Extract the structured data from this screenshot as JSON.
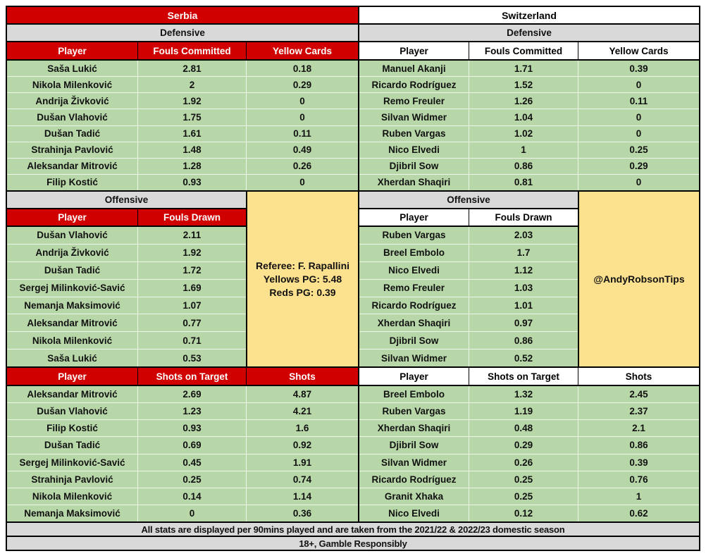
{
  "page": {
    "colors": {
      "serbia_accent_red": "#d00000",
      "row_green": "#b7d7a8",
      "note_yellow": "#fce18f",
      "label_gray": "#d9d9d9",
      "swiss_header_white": "#ffffff"
    }
  },
  "serbia": {
    "team": "Serbia",
    "defensive": {
      "label": "Defensive",
      "headers": [
        "Player",
        "Fouls Committed",
        "Yellow Cards"
      ],
      "rows": [
        {
          "player": "Saša Lukić",
          "fouls": "2.81",
          "yellows": "0.18"
        },
        {
          "player": "Nikola Milenković",
          "fouls": "2",
          "yellows": "0.29"
        },
        {
          "player": "Andrija Živković",
          "fouls": "1.92",
          "yellows": "0"
        },
        {
          "player": "Dušan Vlahović",
          "fouls": "1.75",
          "yellows": "0"
        },
        {
          "player": "Dušan Tadić",
          "fouls": "1.61",
          "yellows": "0.11"
        },
        {
          "player": "Strahinja Pavlović",
          "fouls": "1.48",
          "yellows": "0.49"
        },
        {
          "player": "Aleksandar Mitrović",
          "fouls": "1.28",
          "yellows": "0.26"
        },
        {
          "player": "Filip Kostić",
          "fouls": "0.93",
          "yellows": "0"
        }
      ]
    },
    "offensive": {
      "label": "Offensive",
      "headers": [
        "Player",
        "Fouls Drawn"
      ],
      "rows": [
        {
          "player": "Dušan Vlahović",
          "value": "2.11"
        },
        {
          "player": "Andrija Živković",
          "value": "1.92"
        },
        {
          "player": "Dušan Tadić",
          "value": "1.72"
        },
        {
          "player": "Sergej Milinković-Savić",
          "value": "1.69"
        },
        {
          "player": "Nemanja Maksimović",
          "value": "1.07"
        },
        {
          "player": "Aleksandar Mitrović",
          "value": "0.77"
        },
        {
          "player": "Nikola Milenković",
          "value": "0.71"
        },
        {
          "player": "Saša Lukić",
          "value": "0.53"
        }
      ]
    },
    "shots": {
      "headers": [
        "Player",
        "Shots on Target",
        "Shots"
      ],
      "rows": [
        {
          "player": "Aleksandar Mitrović",
          "sot": "2.69",
          "shots": "4.87"
        },
        {
          "player": "Dušan Vlahović",
          "sot": "1.23",
          "shots": "4.21"
        },
        {
          "player": "Filip Kostić",
          "sot": "0.93",
          "shots": "1.6"
        },
        {
          "player": "Dušan Tadić",
          "sot": "0.69",
          "shots": "0.92"
        },
        {
          "player": "Sergej Milinković-Savić",
          "sot": "0.45",
          "shots": "1.91"
        },
        {
          "player": "Strahinja Pavlović",
          "sot": "0.25",
          "shots": "0.74"
        },
        {
          "player": "Nikola Milenković",
          "sot": "0.14",
          "shots": "1.14"
        },
        {
          "player": "Nemanja Maksimović",
          "sot": "0",
          "shots": "0.36"
        }
      ]
    }
  },
  "switzerland": {
    "team": "Switzerland",
    "defensive": {
      "label": "Defensive",
      "headers": [
        "Player",
        "Fouls Committed",
        "Yellow Cards"
      ],
      "rows": [
        {
          "player": "Manuel Akanji",
          "fouls": "1.71",
          "yellows": "0.39"
        },
        {
          "player": "Ricardo Rodríguez",
          "fouls": "1.52",
          "yellows": "0"
        },
        {
          "player": "Remo Freuler",
          "fouls": "1.26",
          "yellows": "0.11"
        },
        {
          "player": "Silvan Widmer",
          "fouls": "1.04",
          "yellows": "0"
        },
        {
          "player": "Ruben Vargas",
          "fouls": "1.02",
          "yellows": "0"
        },
        {
          "player": "Nico Elvedi",
          "fouls": "1",
          "yellows": "0.25"
        },
        {
          "player": "Djibril Sow",
          "fouls": "0.86",
          "yellows": "0.29"
        },
        {
          "player": "Xherdan Shaqiri",
          "fouls": "0.81",
          "yellows": "0"
        }
      ]
    },
    "offensive": {
      "label": "Offensive",
      "headers": [
        "Player",
        "Fouls Drawn"
      ],
      "rows": [
        {
          "player": "Ruben Vargas",
          "value": "2.03"
        },
        {
          "player": "Breel Embolo",
          "value": "1.7"
        },
        {
          "player": "Nico Elvedi",
          "value": "1.12"
        },
        {
          "player": "Remo Freuler",
          "value": "1.03"
        },
        {
          "player": "Ricardo Rodríguez",
          "value": "1.01"
        },
        {
          "player": "Xherdan Shaqiri",
          "value": "0.97"
        },
        {
          "player": "Djibril Sow",
          "value": "0.86"
        },
        {
          "player": "Silvan Widmer",
          "value": "0.52"
        }
      ]
    },
    "shots": {
      "headers": [
        "Player",
        "Shots on Target",
        "Shots"
      ],
      "rows": [
        {
          "player": "Breel Embolo",
          "sot": "1.32",
          "shots": "2.45"
        },
        {
          "player": "Ruben Vargas",
          "sot": "1.19",
          "shots": "2.37"
        },
        {
          "player": "Xherdan Shaqiri",
          "sot": "0.48",
          "shots": "2.1"
        },
        {
          "player": "Djibril Sow",
          "sot": "0.29",
          "shots": "0.86"
        },
        {
          "player": "Silvan Widmer",
          "sot": "0.26",
          "shots": "0.39"
        },
        {
          "player": "Ricardo Rodríguez",
          "sot": "0.25",
          "shots": "0.76"
        },
        {
          "player": "Granit Xhaka",
          "sot": "0.25",
          "shots": "1"
        },
        {
          "player": "Nico Elvedi",
          "sot": "0.12",
          "shots": "0.62"
        }
      ]
    }
  },
  "referee_note": {
    "line1": "Referee: F. Rapallini",
    "line2": "Yellows PG: 5.48",
    "line3": "Reds PG: 0.39"
  },
  "credit": "@AndyRobsonTips",
  "footer": {
    "note1": "All stats are displayed per 90mins played and are taken from the 2021/22 & 2022/23 domestic season",
    "note2": "18+, Gamble Responsibly"
  }
}
